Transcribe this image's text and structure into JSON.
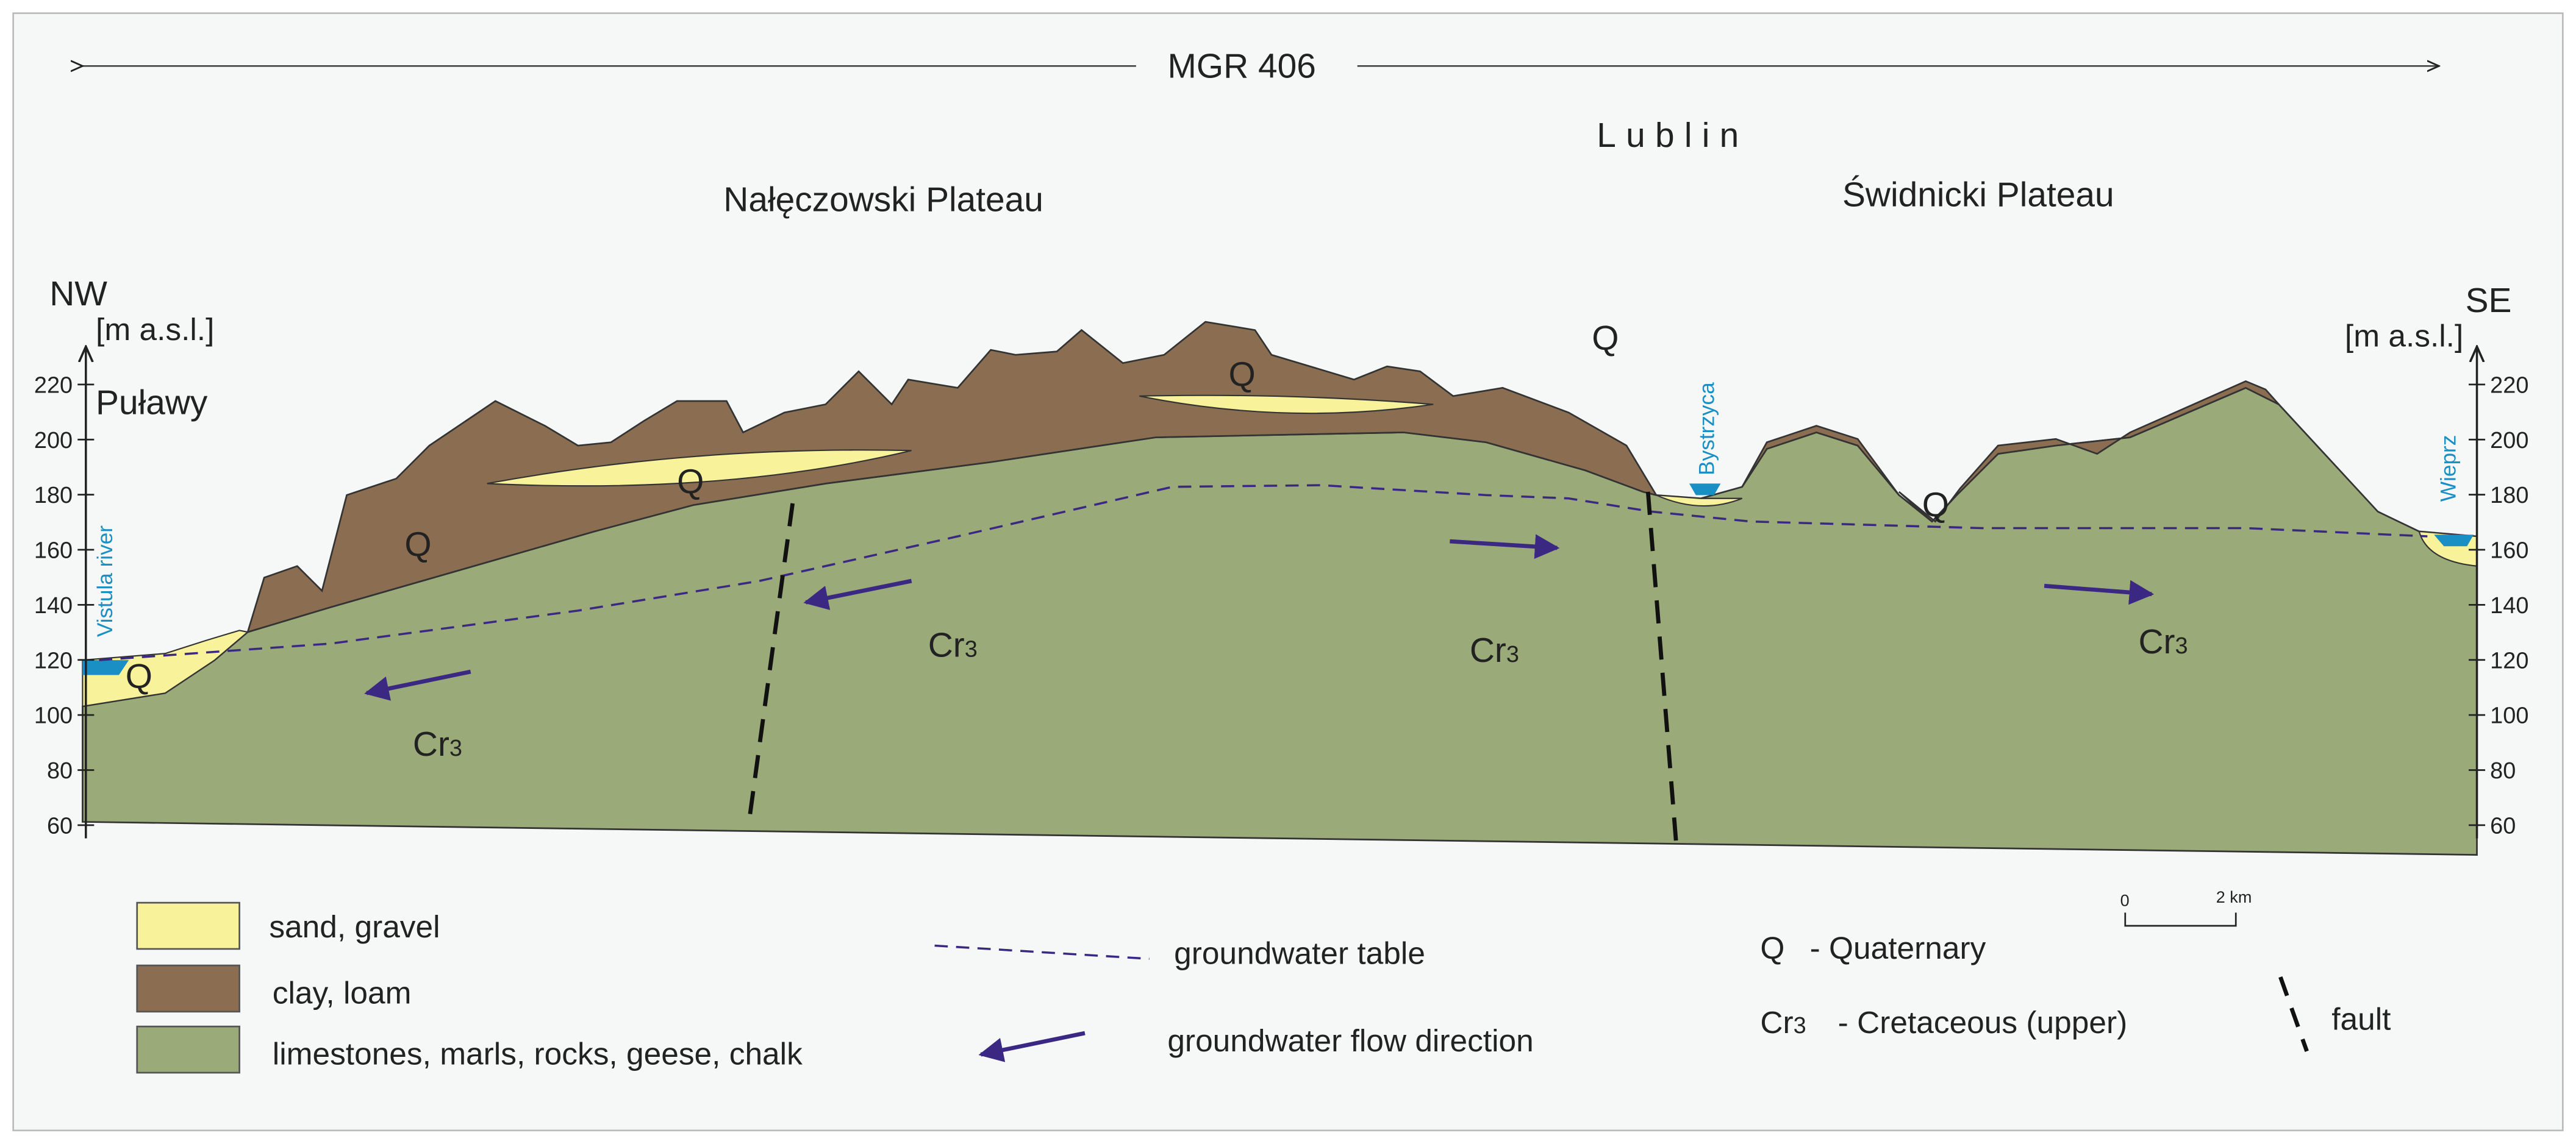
{
  "title": "MGR 406",
  "city": "Lublin",
  "regions": [
    "Nałęczowski Plateau",
    "Świdnicki Plateau"
  ],
  "directions": {
    "left": "NW",
    "right": "SE"
  },
  "axis": {
    "unit": "[m a.s.l.]",
    "ticks": [
      220,
      200,
      180,
      160,
      140,
      120,
      100,
      80,
      60
    ]
  },
  "places": [
    "Puławy"
  ],
  "rivers": [
    "Vistula river",
    "Bystrzyca",
    "Wieprz"
  ],
  "units": {
    "q": "Q",
    "cr": {
      "base": "Cr",
      "sub": "3"
    }
  },
  "legend": {
    "materials": [
      "sand, gravel",
      "clay, loam",
      "limestones, marls, rocks, geese, chalk"
    ],
    "lines": [
      "groundwater table",
      "groundwater flow direction"
    ],
    "quaternary": "- Quaternary",
    "cretaceous": "- Cretaceous (upper)",
    "fault": "fault"
  },
  "scale": {
    "start": "0",
    "end": "2 km"
  }
}
